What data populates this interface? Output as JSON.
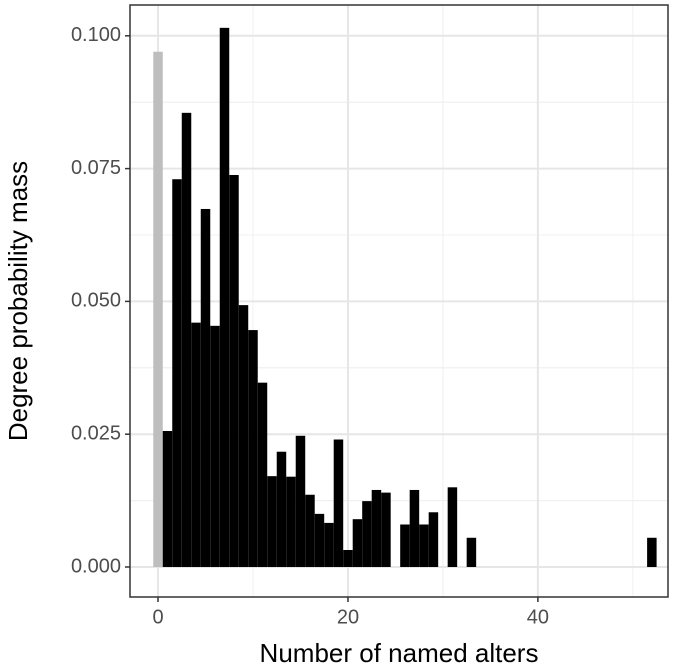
{
  "chart_data": {
    "type": "bar",
    "x_label": "Number of named alters",
    "y_label": "Degree probability mass",
    "x": [
      0,
      1,
      2,
      3,
      4,
      5,
      6,
      7,
      8,
      9,
      10,
      11,
      12,
      13,
      14,
      15,
      16,
      17,
      18,
      19,
      20,
      21,
      22,
      23,
      24,
      26,
      27,
      28,
      29,
      31,
      33,
      52
    ],
    "values": [
      0.097,
      0.0256,
      0.073,
      0.0855,
      0.046,
      0.0674,
      0.0454,
      0.1015,
      0.0738,
      0.0493,
      0.0446,
      0.0347,
      0.0171,
      0.0217,
      0.017,
      0.0247,
      0.0136,
      0.01,
      0.0083,
      0.024,
      0.0032,
      0.009,
      0.0124,
      0.0145,
      0.014,
      0.008,
      0.0145,
      0.008,
      0.0103,
      0.015,
      0.0055,
      0.0055
    ],
    "colors": [
      "#bebebe",
      "#000000",
      "#000000",
      "#000000",
      "#000000",
      "#000000",
      "#000000",
      "#000000",
      "#000000",
      "#000000",
      "#000000",
      "#000000",
      "#000000",
      "#000000",
      "#000000",
      "#000000",
      "#000000",
      "#000000",
      "#000000",
      "#000000",
      "#000000",
      "#000000",
      "#000000",
      "#000000",
      "#000000",
      "#000000",
      "#000000",
      "#000000",
      "#000000",
      "#000000",
      "#000000",
      "#000000"
    ],
    "xlim": [
      -2.95,
      53.7
    ],
    "ylim": [
      -0.00565,
      0.1058
    ],
    "xticks": [
      0,
      20,
      40
    ],
    "yticks": [
      {
        "value": 0,
        "label": "0.000"
      },
      {
        "value": 0.025,
        "label": "0.025"
      },
      {
        "value": 0.05,
        "label": "0.050"
      },
      {
        "value": 0.075,
        "label": "0.075"
      },
      {
        "value": 0.1,
        "label": "0.100"
      }
    ],
    "grid": true
  }
}
